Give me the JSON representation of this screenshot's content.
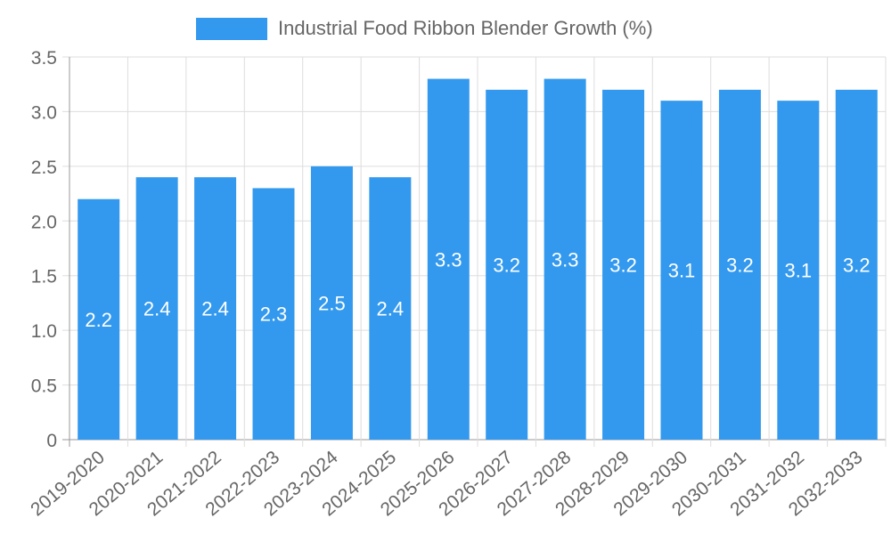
{
  "chart_data": {
    "type": "bar",
    "title": "",
    "xlabel": "",
    "ylabel": "",
    "legend": {
      "label": "Industrial Food Ribbon Blender Growth (%)",
      "position": "top"
    },
    "categories": [
      "2019-2020",
      "2020-2021",
      "2021-2022",
      "2022-2023",
      "2023-2024",
      "2024-2025",
      "2025-2026",
      "2026-2027",
      "2027-2028",
      "2028-2029",
      "2029-2030",
      "2030-2031",
      "2031-2032",
      "2032-2033"
    ],
    "series": [
      {
        "name": "Industrial Food Ribbon Blender Growth (%)",
        "values": [
          2.2,
          2.4,
          2.4,
          2.3,
          2.5,
          2.4,
          3.3,
          3.2,
          3.3,
          3.2,
          3.1,
          3.2,
          3.1,
          3.2
        ]
      }
    ],
    "ylim": [
      0,
      3.5
    ],
    "yticks": [
      "0",
      "0.5",
      "1.0",
      "1.5",
      "2.0",
      "2.5",
      "3.0",
      "3.5"
    ],
    "grid": true,
    "bar_color": "#3399ee",
    "grid_color": "#dddddd",
    "axis_color": "#999999",
    "tick_label_color": "#666666",
    "data_label_color": "#ffffff"
  }
}
